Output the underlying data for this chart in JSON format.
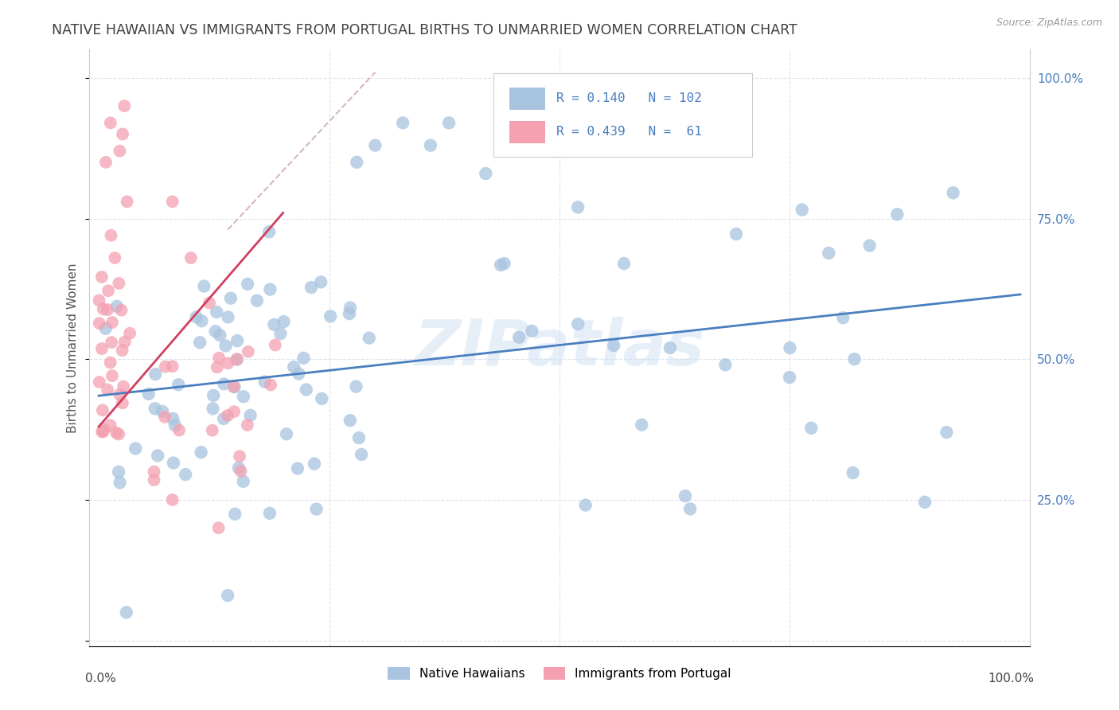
{
  "title": "NATIVE HAWAIIAN VS IMMIGRANTS FROM PORTUGAL BIRTHS TO UNMARRIED WOMEN CORRELATION CHART",
  "source": "Source: ZipAtlas.com",
  "ylabel": "Births to Unmarried Women",
  "xlim": [
    0.0,
    1.0
  ],
  "ylim": [
    0.0,
    1.0
  ],
  "ytick_values": [
    0.0,
    0.25,
    0.5,
    0.75,
    1.0
  ],
  "watermark": "ZIPatlas",
  "R_blue": 0.14,
  "N_blue": 102,
  "R_pink": 0.439,
  "N_pink": 61,
  "blue_color": "#a8c4e0",
  "pink_color": "#f4a0b0",
  "line_blue_color": "#4a7fc0",
  "line_pink_color": "#d04060",
  "line_gray_color": "#d0b0b8",
  "background_color": "#ffffff",
  "grid_color": "#dde4ec",
  "title_color": "#404040",
  "right_axis_color": "#4a7fc0",
  "left_ytick_color": "#808080"
}
